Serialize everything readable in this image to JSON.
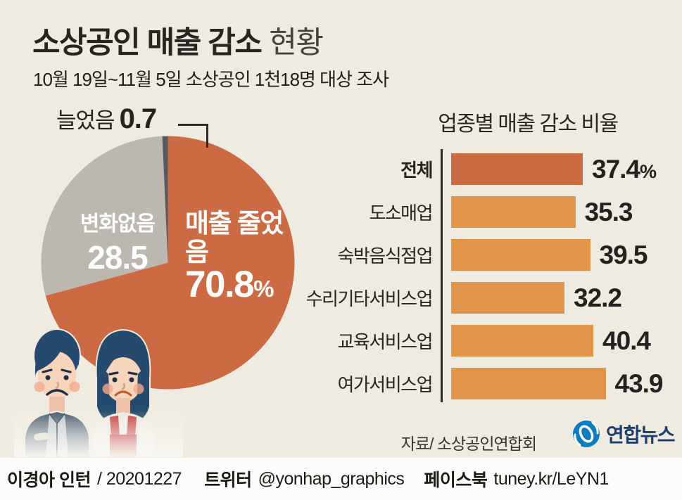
{
  "header": {
    "title_emphasis": "소상공인 매출 감소",
    "title_rest": "현황",
    "subtitle": "10월 19일~11월 5일 소상공인 1천18명 대상 조사"
  },
  "chart_data": [
    {
      "type": "pie",
      "start_angle_deg": 0,
      "direction": "clockwise",
      "segments": [
        {
          "label": "매출 줄었음",
          "value": 70.8,
          "unit": "%",
          "color": "#cc6b43",
          "text_color": "#ffffff"
        },
        {
          "label": "변화없음",
          "value": 28.5,
          "unit": "",
          "color": "#bcb8af",
          "text_color": "#ffffff"
        },
        {
          "label": "늘었음",
          "value": 0.7,
          "unit": "",
          "color": "#565b63",
          "text_color": "#2b2a26"
        }
      ]
    },
    {
      "type": "bar",
      "title": "업종별 매출 감소 비율",
      "orientation": "horizontal",
      "unit": "%",
      "xlim": [
        0,
        50
      ],
      "categories": [
        "전체",
        "도소매업",
        "숙박음식점업",
        "수리기타서비스업",
        "교육서비스업",
        "여가서비스업"
      ],
      "values": [
        37.4,
        35.3,
        39.5,
        32.2,
        40.4,
        43.9
      ],
      "bar_colors": [
        "#cc6b43",
        "#e29449",
        "#e29449",
        "#e29449",
        "#e29449",
        "#e29449"
      ],
      "value_suffix_on_first": "%"
    }
  ],
  "source": "자료/ 소상공인연합회",
  "logo_text": "연합뉴스",
  "footer": {
    "author": "이경아 인턴",
    "date": "/ 20201227",
    "twitter_label": "트위터",
    "twitter_handle": "@yonhap_graphics",
    "facebook_label": "페이스북",
    "facebook_handle": "tuney.kr/LeYN1"
  },
  "colors": {
    "background": "#efebe0",
    "footer_background": "#fcfcfa",
    "accent_orange": "#cc6b43",
    "light_orange": "#e29449",
    "gray_slice": "#bcb8af",
    "sliver_dark": "#565b63",
    "axis": "#2b2a26",
    "yonhap_blue": "#0b7cc0",
    "yonhap_navy": "#1c3e70"
  }
}
